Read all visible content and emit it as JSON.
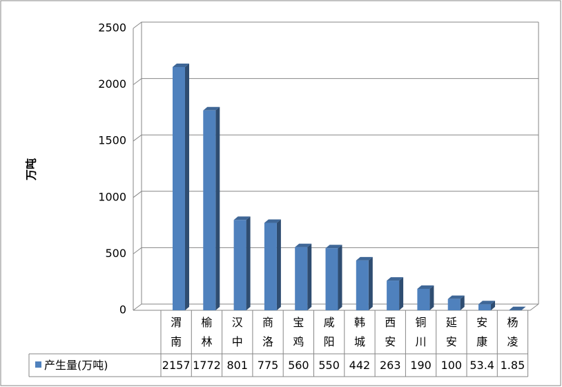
{
  "chart_data": {
    "type": "bar",
    "y_label": "万吨",
    "categories": [
      "渭南",
      "榆林",
      "汉中",
      "商洛",
      "宝鸡",
      "咸阳",
      "韩城",
      "西安",
      "铜川",
      "延安",
      "安康",
      "杨凌"
    ],
    "series": [
      {
        "name": "产生量(万吨)",
        "color": "#4f81bd",
        "values": [
          2157,
          1772,
          801,
          775,
          560,
          550,
          442,
          263,
          190,
          100,
          53.4,
          1.85
        ]
      }
    ],
    "ylim": [
      0,
      2500
    ],
    "yticks": [
      0,
      500,
      1000,
      1500,
      2000,
      2500
    ],
    "grid": true,
    "data_table": true
  }
}
